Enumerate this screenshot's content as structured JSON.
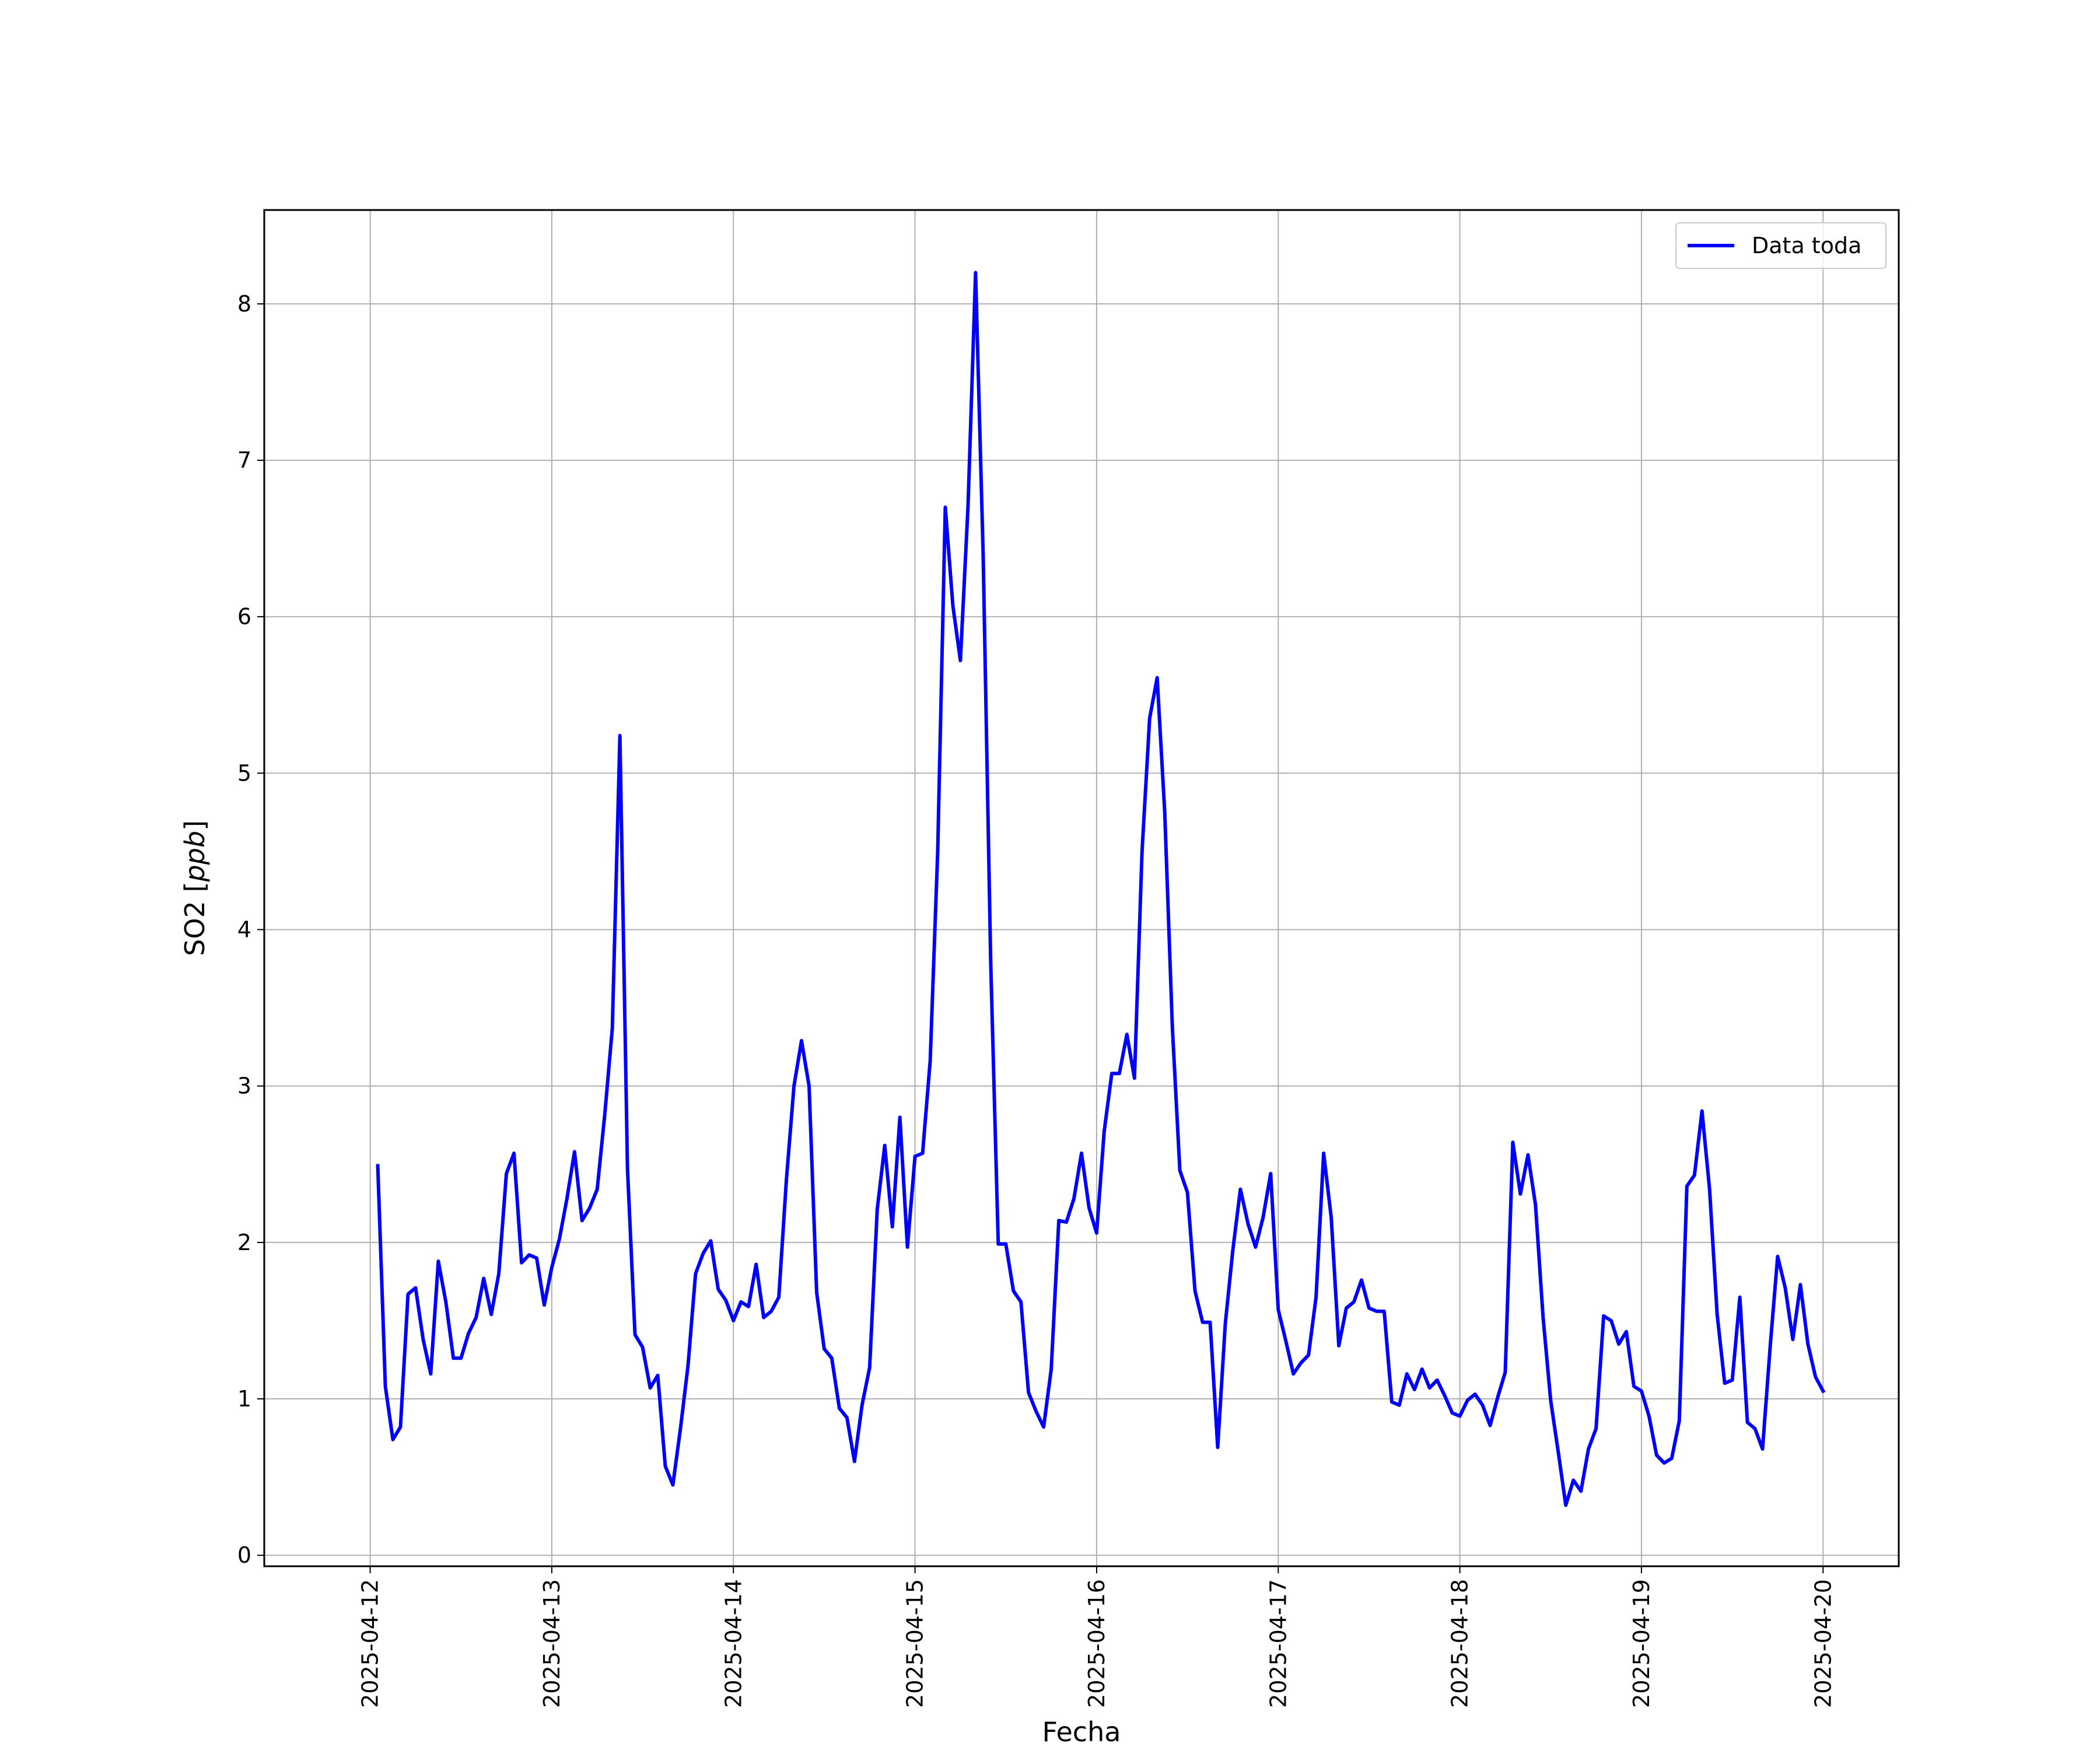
{
  "chart_data": {
    "type": "line",
    "xlabel": "Fecha",
    "ylabel": {
      "prefix": "SO2 [",
      "unit": "ppb",
      "suffix": "]"
    },
    "xlim": [
      "2025-04-11T10:00",
      "2025-04-20T10:00"
    ],
    "ylim": [
      -0.07,
      8.6
    ],
    "x_ticks": [
      "2025-04-12",
      "2025-04-13",
      "2025-04-14",
      "2025-04-15",
      "2025-04-16",
      "2025-04-17",
      "2025-04-18",
      "2025-04-19",
      "2025-04-20"
    ],
    "y_ticks": [
      0,
      1,
      2,
      3,
      4,
      5,
      6,
      7,
      8
    ],
    "grid": true,
    "legend_position": "upper right",
    "series": [
      {
        "name": "Data toda",
        "color": "#0000ff",
        "x": [
          "2025-04-12T01:00",
          "2025-04-12T02:00",
          "2025-04-12T03:00",
          "2025-04-12T04:00",
          "2025-04-12T05:00",
          "2025-04-12T06:00",
          "2025-04-12T07:00",
          "2025-04-12T08:00",
          "2025-04-12T09:00",
          "2025-04-12T10:00",
          "2025-04-12T11:00",
          "2025-04-12T12:00",
          "2025-04-12T13:00",
          "2025-04-12T14:00",
          "2025-04-12T15:00",
          "2025-04-12T16:00",
          "2025-04-12T17:00",
          "2025-04-12T18:00",
          "2025-04-12T19:00",
          "2025-04-12T20:00",
          "2025-04-12T21:00",
          "2025-04-12T22:00",
          "2025-04-12T23:00",
          "2025-04-13T00:00",
          "2025-04-13T01:00",
          "2025-04-13T02:00",
          "2025-04-13T03:00",
          "2025-04-13T04:00",
          "2025-04-13T05:00",
          "2025-04-13T06:00",
          "2025-04-13T07:00",
          "2025-04-13T08:00",
          "2025-04-13T09:00",
          "2025-04-13T10:00",
          "2025-04-13T11:00",
          "2025-04-13T12:00",
          "2025-04-13T13:00",
          "2025-04-13T14:00",
          "2025-04-13T15:00",
          "2025-04-13T16:00",
          "2025-04-13T17:00",
          "2025-04-13T18:00",
          "2025-04-13T19:00",
          "2025-04-13T20:00",
          "2025-04-13T21:00",
          "2025-04-13T22:00",
          "2025-04-13T23:00",
          "2025-04-14T00:00",
          "2025-04-14T01:00",
          "2025-04-14T02:00",
          "2025-04-14T03:00",
          "2025-04-14T04:00",
          "2025-04-14T05:00",
          "2025-04-14T06:00",
          "2025-04-14T07:00",
          "2025-04-14T08:00",
          "2025-04-14T09:00",
          "2025-04-14T10:00",
          "2025-04-14T11:00",
          "2025-04-14T12:00",
          "2025-04-14T13:00",
          "2025-04-14T14:00",
          "2025-04-14T15:00",
          "2025-04-14T16:00",
          "2025-04-14T17:00",
          "2025-04-14T18:00",
          "2025-04-14T19:00",
          "2025-04-14T20:00",
          "2025-04-14T21:00",
          "2025-04-14T22:00",
          "2025-04-14T23:00",
          "2025-04-15T00:00",
          "2025-04-15T01:00",
          "2025-04-15T02:00",
          "2025-04-15T03:00",
          "2025-04-15T04:00",
          "2025-04-15T05:00",
          "2025-04-15T06:00",
          "2025-04-15T07:00",
          "2025-04-15T08:00",
          "2025-04-15T09:00",
          "2025-04-15T10:00",
          "2025-04-15T11:00",
          "2025-04-15T12:00",
          "2025-04-15T13:00",
          "2025-04-15T14:00",
          "2025-04-15T15:00",
          "2025-04-15T16:00",
          "2025-04-15T17:00",
          "2025-04-15T18:00",
          "2025-04-15T19:00",
          "2025-04-15T20:00",
          "2025-04-15T21:00",
          "2025-04-15T22:00",
          "2025-04-15T23:00",
          "2025-04-16T00:00",
          "2025-04-16T01:00",
          "2025-04-16T02:00",
          "2025-04-16T03:00",
          "2025-04-16T04:00",
          "2025-04-16T05:00",
          "2025-04-16T06:00",
          "2025-04-16T07:00",
          "2025-04-16T08:00",
          "2025-04-16T09:00",
          "2025-04-16T10:00",
          "2025-04-16T11:00",
          "2025-04-16T12:00",
          "2025-04-16T13:00",
          "2025-04-16T14:00",
          "2025-04-16T15:00",
          "2025-04-16T16:00",
          "2025-04-16T17:00",
          "2025-04-16T18:00",
          "2025-04-16T19:00",
          "2025-04-16T20:00",
          "2025-04-16T21:00",
          "2025-04-16T22:00",
          "2025-04-16T23:00",
          "2025-04-17T00:00",
          "2025-04-17T01:00",
          "2025-04-17T02:00",
          "2025-04-17T03:00",
          "2025-04-17T04:00",
          "2025-04-17T05:00",
          "2025-04-17T06:00",
          "2025-04-17T07:00",
          "2025-04-17T08:00",
          "2025-04-17T09:00",
          "2025-04-17T10:00",
          "2025-04-17T11:00",
          "2025-04-17T12:00",
          "2025-04-17T13:00",
          "2025-04-17T14:00",
          "2025-04-17T15:00",
          "2025-04-17T16:00",
          "2025-04-17T17:00",
          "2025-04-17T18:00",
          "2025-04-17T19:00",
          "2025-04-17T20:00",
          "2025-04-17T21:00",
          "2025-04-17T22:00",
          "2025-04-17T23:00",
          "2025-04-18T00:00",
          "2025-04-18T01:00",
          "2025-04-18T02:00",
          "2025-04-18T03:00",
          "2025-04-18T04:00",
          "2025-04-18T05:00",
          "2025-04-18T06:00",
          "2025-04-18T07:00",
          "2025-04-18T08:00",
          "2025-04-18T09:00",
          "2025-04-18T10:00",
          "2025-04-18T11:00",
          "2025-04-18T12:00",
          "2025-04-18T13:00",
          "2025-04-18T14:00",
          "2025-04-18T15:00",
          "2025-04-18T16:00",
          "2025-04-18T17:00",
          "2025-04-18T18:00",
          "2025-04-18T19:00",
          "2025-04-18T20:00",
          "2025-04-18T21:00",
          "2025-04-18T22:00",
          "2025-04-18T23:00",
          "2025-04-19T00:00",
          "2025-04-19T01:00",
          "2025-04-19T02:00",
          "2025-04-19T03:00",
          "2025-04-19T04:00",
          "2025-04-19T05:00",
          "2025-04-19T06:00",
          "2025-04-19T07:00",
          "2025-04-19T08:00",
          "2025-04-19T09:00",
          "2025-04-19T10:00",
          "2025-04-19T11:00",
          "2025-04-19T12:00",
          "2025-04-19T13:00",
          "2025-04-19T14:00",
          "2025-04-19T15:00",
          "2025-04-19T16:00",
          "2025-04-19T17:00",
          "2025-04-19T18:00",
          "2025-04-19T19:00",
          "2025-04-19T20:00",
          "2025-04-19T21:00",
          "2025-04-19T22:00",
          "2025-04-19T23:00",
          "2025-04-20T00:00"
        ],
        "y": [
          2.49,
          1.08,
          0.74,
          0.82,
          1.67,
          1.71,
          1.38,
          1.16,
          1.88,
          1.62,
          1.26,
          1.26,
          1.42,
          1.52,
          1.77,
          1.54,
          1.8,
          2.44,
          2.57,
          1.87,
          1.92,
          1.9,
          1.6,
          1.84,
          2.02,
          2.28,
          2.58,
          2.14,
          2.22,
          2.34,
          2.82,
          3.37,
          5.24,
          2.47,
          1.41,
          1.33,
          1.07,
          1.15,
          0.57,
          0.45,
          0.81,
          1.21,
          1.8,
          1.93,
          2.01,
          1.7,
          1.63,
          1.5,
          1.62,
          1.59,
          1.86,
          1.52,
          1.56,
          1.65,
          2.4,
          3.0,
          3.29,
          3.0,
          1.68,
          1.32,
          1.26,
          0.94,
          0.88,
          0.6,
          0.96,
          1.2,
          2.21,
          2.62,
          2.1,
          2.8,
          1.97,
          2.55,
          2.57,
          3.16,
          4.5,
          6.7,
          6.07,
          5.72,
          6.7,
          8.2,
          6.4,
          3.8,
          1.99,
          1.99,
          1.69,
          1.62,
          1.04,
          0.92,
          0.82,
          1.19,
          2.14,
          2.13,
          2.28,
          2.57,
          2.22,
          2.06,
          2.71,
          3.08,
          3.08,
          3.33,
          3.05,
          4.5,
          5.35,
          5.61,
          4.75,
          3.38,
          2.46,
          2.32,
          1.69,
          1.49,
          1.49,
          0.69,
          1.48,
          1.95,
          2.34,
          2.12,
          1.97,
          2.16,
          2.44,
          1.57,
          1.37,
          1.16,
          1.23,
          1.28,
          1.65,
          2.57,
          2.16,
          1.34,
          1.58,
          1.62,
          1.76,
          1.58,
          1.56,
          1.56,
          0.98,
          0.96,
          1.16,
          1.06,
          1.19,
          1.07,
          1.12,
          1.02,
          0.91,
          0.89,
          0.99,
          1.03,
          0.96,
          0.83,
          1.01,
          1.17,
          2.64,
          2.31,
          2.56,
          2.24,
          1.52,
          0.99,
          0.66,
          0.32,
          0.48,
          0.41,
          0.68,
          0.81,
          1.53,
          1.5,
          1.35,
          1.43,
          1.08,
          1.05,
          0.89,
          0.64,
          0.59,
          0.62,
          0.86,
          2.36,
          2.43,
          2.84,
          2.34,
          1.54,
          1.1,
          1.12,
          1.65,
          0.85,
          0.81,
          0.68,
          1.33,
          1.91,
          1.71,
          1.38,
          1.73,
          1.35,
          1.14,
          1.05
        ]
      }
    ]
  }
}
